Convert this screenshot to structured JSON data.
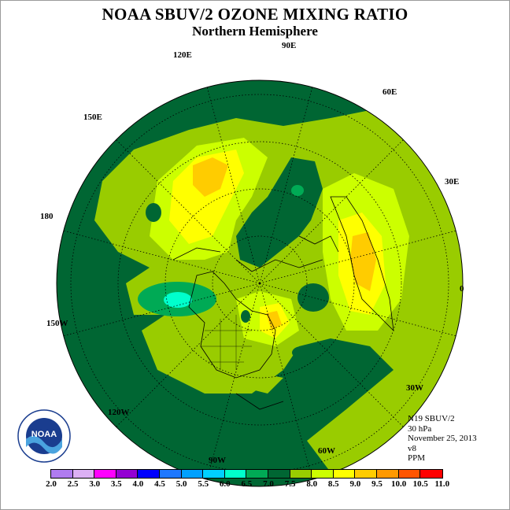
{
  "header": {
    "title": "NOAA SBUV/2 OZONE MIXING RATIO",
    "subtitle": "Northern Hemisphere"
  },
  "map": {
    "projection": "polar stereographic",
    "hemisphere": "north",
    "longitude_labels": [
      "90E",
      "60E",
      "30E",
      "0",
      "30W",
      "60W",
      "90W",
      "120W",
      "150W",
      "180",
      "150E",
      "120E"
    ],
    "ocean_background": "#006633"
  },
  "info": {
    "satellite": "N19 SBUV/2",
    "level": "30 hPa",
    "date": "November 25, 2013",
    "version": "v8",
    "units": "PPM"
  },
  "logo": {
    "text": "NOAA",
    "ring_text": "NATIONAL OCEANIC AND ATMOSPHERIC ADMINISTRATION",
    "bottom_text": "U.S. DEPARTMENT OF COMMERCE"
  },
  "legend": {
    "ticks": [
      "2.0",
      "2.5",
      "3.0",
      "3.5",
      "4.0",
      "4.5",
      "5.0",
      "5.5",
      "6.0",
      "6.5",
      "7.0",
      "7.5",
      "8.0",
      "8.5",
      "9.0",
      "9.5",
      "10.0",
      "10.5",
      "11.0"
    ],
    "colors": [
      "#b07cf0",
      "#dcb0f4",
      "#ff00ff",
      "#9400d3",
      "#0000ff",
      "#1e78ff",
      "#00a0ff",
      "#00d0ff",
      "#00ffcc",
      "#00aa55",
      "#006633",
      "#99cc00",
      "#ccff00",
      "#ffff00",
      "#ffcc00",
      "#ff9900",
      "#ff5500",
      "#ff0000",
      "#8b4513"
    ]
  }
}
